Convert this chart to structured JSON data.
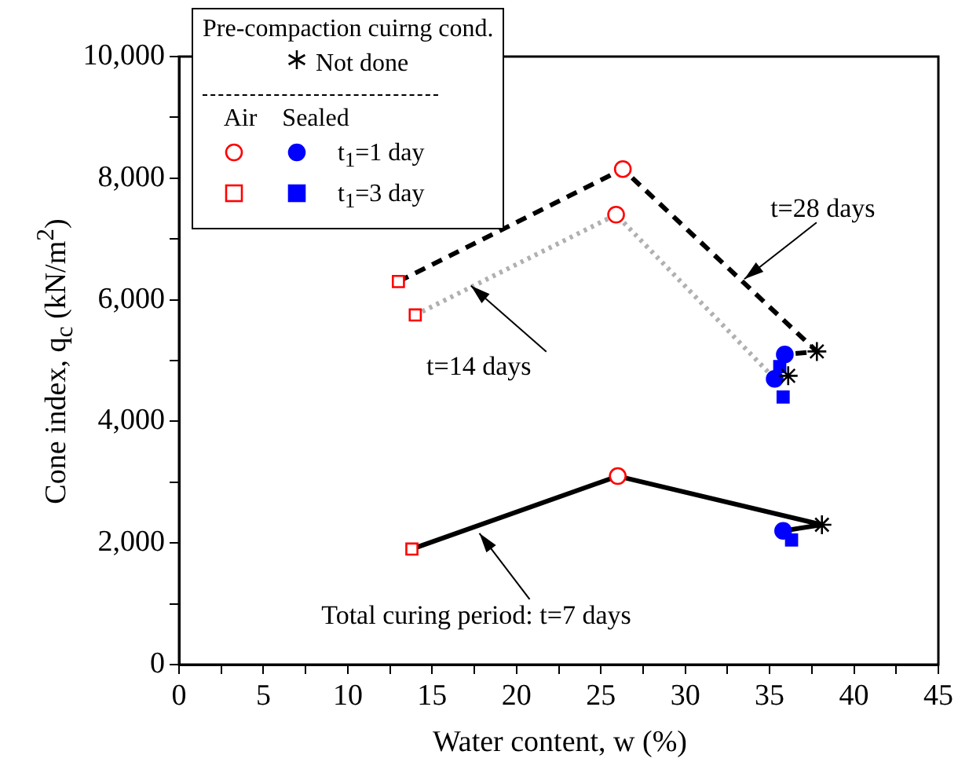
{
  "chart_data": {
    "type": "scatter",
    "xlabel": "Water content, w (%)",
    "ylabel": "Cone index, q$_{c}$ (kN/m$^{2}$)",
    "legend_title": "Pre-compaction cuirng cond.",
    "legend": "top left",
    "xlim": [
      0,
      45
    ],
    "xticks": [
      0,
      {
        "value": 2.5,
        "label": null
      },
      5,
      {
        "value": 7.5,
        "label": null
      },
      10,
      {
        "value": 12.5,
        "label": null
      },
      15,
      {
        "value": 17.5,
        "label": null
      },
      20,
      {
        "value": 22.5,
        "label": null
      },
      25,
      {
        "value": 27.5,
        "label": null
      },
      30,
      {
        "value": 32.5,
        "label": null
      },
      35,
      {
        "value": 37.5,
        "label": null
      },
      40,
      {
        "value": 42.5,
        "label": null
      },
      45
    ],
    "ylim": [
      0,
      10000
    ],
    "yticks": [
      {
        "value": 0,
        "label": "0"
      },
      {
        "value": 1000,
        "label": null
      },
      {
        "value": 2000,
        "label": "2,000"
      },
      {
        "value": 3000,
        "label": null
      },
      {
        "value": 4000,
        "label": "4,000"
      },
      {
        "value": 5000,
        "label": null
      },
      {
        "value": 6000,
        "label": "6,000"
      },
      {
        "value": 7000,
        "label": null
      },
      {
        "value": 8000,
        "label": "8,000"
      },
      {
        "value": 9000,
        "label": null
      },
      {
        "value": 10000,
        "label": "10,000"
      }
    ],
    "annotations": [
      {
        "text": "t=28 days",
        "x": 33.5,
        "y": 6340
      },
      {
        "text": "t=14 days",
        "x": 17.3,
        "y": 6230
      },
      {
        "text": "Total curing period: t=7 days",
        "x": 17.8,
        "y": 2160
      },
      "Air",
      "Sealed"
    ],
    "series": [
      {
        "type": "line",
        "color": "#000000",
        "line_style": "solid",
        "marker": "none",
        "x": [
          13.8,
          26,
          38.1,
          35.8
        ],
        "values": [
          1900,
          3100,
          2300,
          2200
        ]
      },
      {
        "type": "line",
        "color": "#000000",
        "line_style": "dashed",
        "marker": "none",
        "x": [
          13,
          26.3,
          37.8,
          35.9
        ],
        "values": [
          6300,
          8150,
          5150,
          5100
        ]
      },
      {
        "type": "line",
        "color": "#b0b0b0",
        "line_style": "dotted",
        "marker": "none",
        "x": [
          14,
          25.9,
          35.3
        ],
        "values": [
          5750,
          7400,
          4700
        ]
      },
      {
        "name": "Not done",
        "type": "scatter",
        "color": "#000000",
        "marker": "cross",
        "x": [
          38.1,
          37.8,
          36.1
        ],
        "values": [
          2300,
          5150,
          4750
        ]
      },
      {
        "name": "t$_{1}$=1 day",
        "type": "scatter",
        "colors": [
          "#0000ff",
          "#0000ff",
          "#0000ff",
          "#ff0000",
          "#ff0000",
          "#ff0000"
        ],
        "marker": "circle",
        "x": [
          35.8,
          35.9,
          35.3,
          26,
          26.3,
          25.9
        ],
        "values": [
          2200,
          5100,
          4700,
          3100,
          8150,
          7400
        ]
      },
      {
        "name": "t$_{1}$=3 day",
        "type": "scatter",
        "colors": [
          "#0000ff",
          "#0000ff",
          "#0000ff",
          "#ff0000",
          "#ff0000",
          "#ff0000"
        ],
        "marker": "square",
        "x": [
          36.3,
          35.6,
          35.8,
          13.8,
          13,
          14
        ],
        "values": [
          2050,
          4900,
          4400,
          1900,
          6300,
          5750
        ]
      }
    ]
  }
}
